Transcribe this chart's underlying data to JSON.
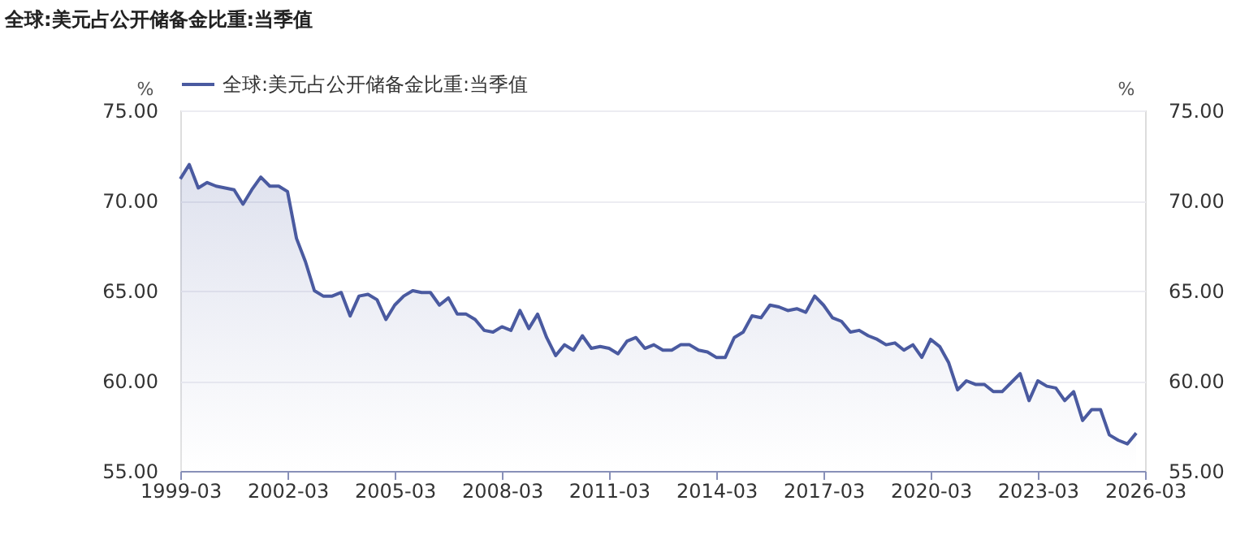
{
  "chart_data": {
    "type": "area",
    "title": "全球:美元占公开储备金比重:当季值",
    "ylabel": "%",
    "y2label": "%",
    "legend": "top left",
    "grid": "y",
    "line_style": "solid",
    "marker": "none",
    "xlim": [
      "1999-03",
      "2026-03"
    ],
    "xticks": [
      "1999-03",
      "2002-03",
      "2005-03",
      "2008-03",
      "2011-03",
      "2014-03",
      "2017-03",
      "2020-03",
      "2023-03",
      "2026-03"
    ],
    "ylim": [
      55,
      75
    ],
    "yticks": [
      {
        "value": 55,
        "label": "55.00"
      },
      {
        "value": 60,
        "label": "60.00"
      },
      {
        "value": 65,
        "label": "65.00"
      },
      {
        "value": 70,
        "label": "70.00"
      },
      {
        "value": 75,
        "label": "75.00"
      }
    ],
    "y2lim": [
      55,
      75
    ],
    "y2ticks": [
      {
        "value": 55,
        "label": "55.00"
      },
      {
        "value": 60,
        "label": "60.00"
      },
      {
        "value": 65,
        "label": "65.00"
      },
      {
        "value": 70,
        "label": "70.00"
      },
      {
        "value": 75,
        "label": "75.00"
      }
    ],
    "x": [
      "1999-03",
      "1999-06",
      "1999-09",
      "1999-12",
      "2000-03",
      "2000-06",
      "2000-09",
      "2000-12",
      "2001-03",
      "2001-06",
      "2001-09",
      "2001-12",
      "2002-03",
      "2002-06",
      "2002-09",
      "2002-12",
      "2003-03",
      "2003-06",
      "2003-09",
      "2003-12",
      "2004-03",
      "2004-06",
      "2004-09",
      "2004-12",
      "2005-03",
      "2005-06",
      "2005-09",
      "2005-12",
      "2006-03",
      "2006-06",
      "2006-09",
      "2006-12",
      "2007-03",
      "2007-06",
      "2007-09",
      "2007-12",
      "2008-03",
      "2008-06",
      "2008-09",
      "2008-12",
      "2009-03",
      "2009-06",
      "2009-09",
      "2009-12",
      "2010-03",
      "2010-06",
      "2010-09",
      "2010-12",
      "2011-03",
      "2011-06",
      "2011-09",
      "2011-12",
      "2012-03",
      "2012-06",
      "2012-09",
      "2012-12",
      "2013-03",
      "2013-06",
      "2013-09",
      "2013-12",
      "2014-03",
      "2014-06",
      "2014-09",
      "2014-12",
      "2015-03",
      "2015-06",
      "2015-09",
      "2015-12",
      "2016-03",
      "2016-06",
      "2016-09",
      "2016-12",
      "2017-03",
      "2017-06",
      "2017-09",
      "2017-12",
      "2018-03",
      "2018-06",
      "2018-09",
      "2018-12",
      "2019-03",
      "2019-06",
      "2019-09",
      "2019-12",
      "2020-03",
      "2020-06",
      "2020-09",
      "2020-12",
      "2021-03",
      "2021-06",
      "2021-09",
      "2021-12",
      "2022-03",
      "2022-06",
      "2022-09",
      "2022-12",
      "2023-03",
      "2023-06",
      "2023-09",
      "2023-12",
      "2024-03",
      "2024-06",
      "2024-09",
      "2024-12",
      "2025-03",
      "2025-06",
      "2025-09",
      "2025-12"
    ],
    "series": [
      {
        "name": "全球:美元占公开储备金比重:当季值",
        "color": "#4a5aa0",
        "values": [
          71.2,
          72.0,
          70.7,
          71.0,
          70.8,
          70.7,
          70.6,
          69.8,
          70.6,
          71.3,
          70.8,
          70.8,
          70.5,
          67.9,
          66.6,
          65.0,
          64.7,
          64.7,
          64.9,
          63.6,
          64.7,
          64.8,
          64.5,
          63.4,
          64.2,
          64.7,
          65.0,
          64.9,
          64.9,
          64.2,
          64.6,
          63.7,
          63.7,
          63.4,
          62.8,
          62.7,
          63.0,
          62.8,
          63.9,
          62.9,
          63.7,
          62.4,
          61.4,
          62.0,
          61.7,
          62.5,
          61.8,
          61.9,
          61.8,
          61.5,
          62.2,
          62.4,
          61.8,
          62.0,
          61.7,
          61.7,
          62.0,
          62.0,
          61.7,
          61.6,
          61.3,
          61.3,
          62.4,
          62.7,
          63.6,
          63.5,
          64.2,
          64.1,
          63.9,
          64.0,
          63.8,
          64.7,
          64.2,
          63.5,
          63.3,
          62.7,
          62.8,
          62.5,
          62.3,
          62.0,
          62.1,
          61.7,
          62.0,
          61.3,
          62.3,
          61.9,
          61.0,
          59.5,
          60.0,
          59.8,
          59.8,
          59.4,
          59.4,
          59.9,
          60.4,
          58.9,
          60.0,
          59.7,
          59.6,
          58.9,
          59.4,
          57.8,
          58.4,
          58.4,
          57.0,
          56.7,
          56.5,
          57.1
        ]
      }
    ]
  }
}
